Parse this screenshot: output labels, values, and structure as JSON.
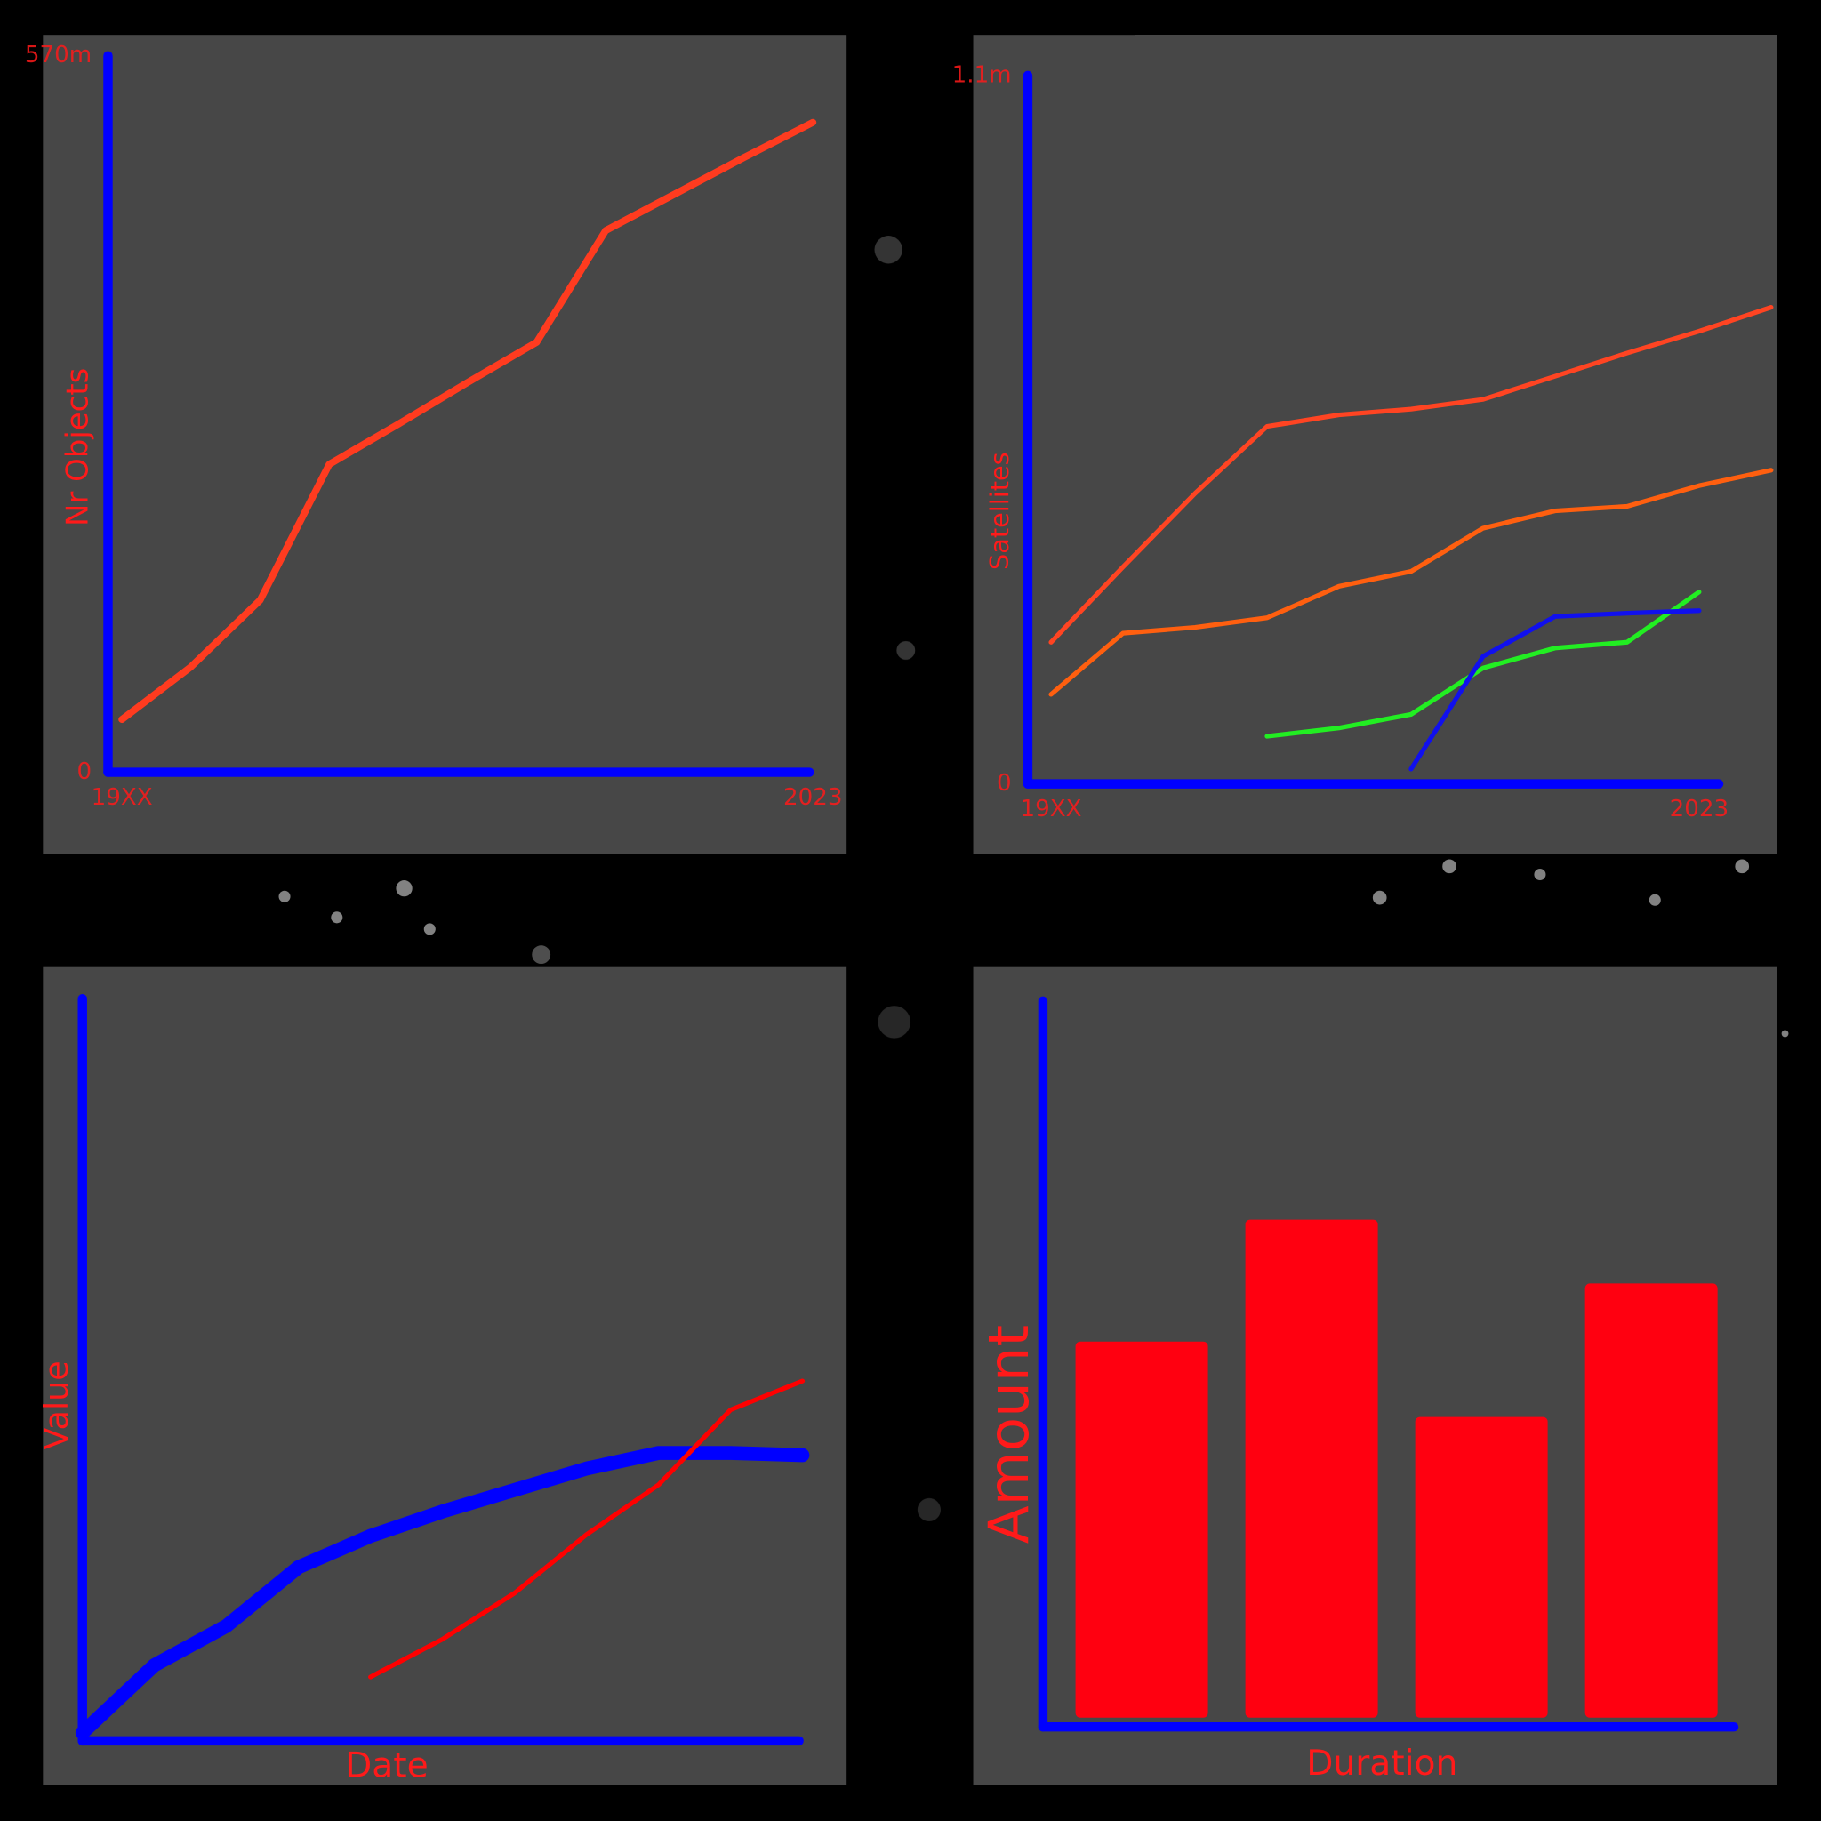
{
  "chart_data": [
    {
      "type": "line",
      "ylabel": "Nr Objects",
      "categories": [
        "19XX",
        null,
        null,
        null,
        null,
        null,
        null,
        null,
        null,
        null,
        "2023"
      ],
      "values": [
        42,
        84,
        137,
        245,
        277,
        310,
        342,
        431,
        460,
        489,
        517
      ],
      "color": "#ff3b1f",
      "axis_color": "#0000ff",
      "ylim": [
        0,
        570
      ],
      "yticks": [
        0,
        {
          "value": 570,
          "label": "570m"
        }
      ]
    },
    {
      "type": "line",
      "ylabel": "Satellites",
      "categories": [
        "19XX",
        null,
        null,
        null,
        null,
        null,
        null,
        null,
        null,
        "2023",
        null
      ],
      "series": [
        {
          "color": "#ff4422",
          "values": [
            0.22,
            0.337,
            0.451,
            0.555,
            0.573,
            0.582,
            0.597,
            0.633,
            0.669,
            0.703,
            0.74
          ]
        },
        {
          "color": "#ff5f0f",
          "values": [
            0.139,
            0.234,
            0.243,
            0.258,
            0.307,
            0.33,
            0.397,
            0.424,
            0.431,
            0.463,
            0.487
          ]
        },
        {
          "color": "#22ee22",
          "values": [
            null,
            null,
            null,
            0.074,
            0.087,
            0.108,
            0.18,
            0.211,
            0.22,
            0.298,
            null
          ]
        },
        {
          "color": "#1010ee",
          "values": [
            null,
            null,
            null,
            null,
            null,
            0.023,
            0.198,
            0.26,
            0.265,
            0.269,
            null
          ]
        }
      ],
      "axis_color": "#0000ff",
      "ylim": [
        0,
        1.1
      ],
      "yticks": [
        0,
        {
          "value": 1.1,
          "label": "1.1m"
        }
      ]
    },
    {
      "type": "line",
      "ylabel": "Value",
      "xlabel": "Date",
      "categories": [
        null,
        null,
        null,
        null,
        null,
        null,
        null,
        null,
        null,
        null,
        null
      ],
      "series": [
        {
          "color": "#0000ff",
          "values": [
            1.1,
            10.2,
            15.5,
            23.4,
            27.6,
            30.9,
            33.8,
            36.7,
            38.8,
            38.8,
            38.5
          ]
        },
        {
          "color": "#ff0000",
          "values": [
            null,
            null,
            null,
            null,
            8.6,
            13.7,
            19.9,
            27.8,
            34.5,
            44.6,
            48.5
          ]
        }
      ],
      "axis_color": "#0000ff",
      "ylim": [
        0,
        100
      ]
    },
    {
      "type": "bar",
      "ylabel": "Amount",
      "xlabel": "Duration",
      "categories": [
        null,
        null,
        null,
        null
      ],
      "values": [
        53.1,
        69.9,
        42.7,
        61.1
      ],
      "color": "#ff0010",
      "axis_color": "#0000ff",
      "ylim": [
        0,
        100
      ]
    }
  ]
}
